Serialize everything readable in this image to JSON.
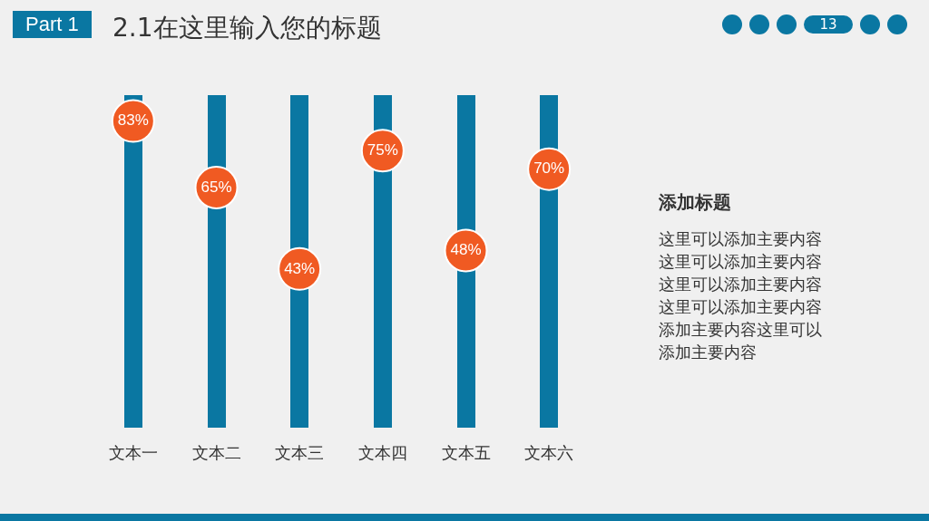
{
  "chart_data": {
    "type": "scatter",
    "title": "2.1在这里输入您的标题",
    "categories": [
      "文本一",
      "文本二",
      "文本三",
      "文本四",
      "文本五",
      "文本六"
    ],
    "values": [
      83,
      65,
      43,
      75,
      48,
      70
    ],
    "color": "#f05a22",
    "value_labels": [
      "83%",
      "65%",
      "43%",
      "75%",
      "48%",
      "70%"
    ],
    "tick_labels": "x",
    "grid": "x",
    "marker": "circle",
    "legend": false,
    "annotations": [
      "Part 1",
      "13",
      "添加标题",
      "这里可以添加主要内容这里可以添加主要内容这里可以添加主要内容这里可以添加主要内容添加主要内容这里可以添加主要内容"
    ]
  }
}
